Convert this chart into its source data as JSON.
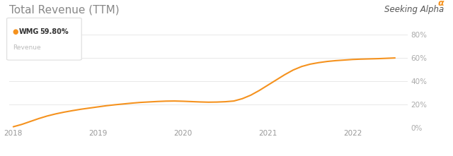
{
  "title": "Total Revenue (TTM)",
  "title_fontsize": 11,
  "background_color": "#ffffff",
  "line_color": "#f5921e",
  "line_width": 1.5,
  "yticks_right": [
    0,
    20,
    40,
    60,
    80
  ],
  "ytick_labels_right": [
    "0%",
    "20%",
    "40%",
    "60%",
    "80%"
  ],
  "xtick_labels": [
    "2018",
    "2019",
    "2020",
    "2021",
    "2022"
  ],
  "grid_color": "#e8e8e8",
  "legend_ticker": "WMG",
  "legend_value": "59.80%",
  "legend_sublabel": "Revenue",
  "seeking_alpha_text": "Seeking Alpha",
  "seeking_alpha_color": "#555555",
  "alpha_symbol": "α",
  "x_values": [
    0.0,
    0.1,
    0.2,
    0.3,
    0.4,
    0.5,
    0.6,
    0.7,
    0.8,
    0.9,
    1.0,
    1.1,
    1.2,
    1.3,
    1.4,
    1.5,
    1.6,
    1.7,
    1.8,
    1.9,
    2.0,
    2.1,
    2.2,
    2.3,
    2.4,
    2.5,
    2.6,
    2.7,
    2.8,
    2.9,
    3.0,
    3.1,
    3.2,
    3.3,
    3.4,
    3.5,
    3.6,
    3.7,
    3.8,
    3.9,
    4.0,
    4.1,
    4.2,
    4.3,
    4.4,
    4.5
  ],
  "y_values": [
    1.0,
    3.0,
    5.5,
    8.0,
    10.2,
    12.0,
    13.5,
    14.8,
    16.0,
    17.0,
    18.0,
    19.0,
    19.8,
    20.5,
    21.2,
    21.8,
    22.2,
    22.6,
    22.9,
    23.0,
    22.8,
    22.5,
    22.2,
    22.0,
    22.1,
    22.4,
    23.0,
    25.0,
    28.0,
    32.0,
    36.5,
    41.0,
    45.5,
    49.5,
    52.5,
    54.5,
    55.8,
    56.8,
    57.5,
    58.0,
    58.5,
    58.8,
    59.0,
    59.2,
    59.5,
    59.8
  ],
  "xlim": [
    -0.05,
    4.65
  ],
  "ylim": [
    0,
    80
  ],
  "x_tick_positions": [
    0.0,
    1.0,
    2.0,
    3.0,
    4.0
  ]
}
